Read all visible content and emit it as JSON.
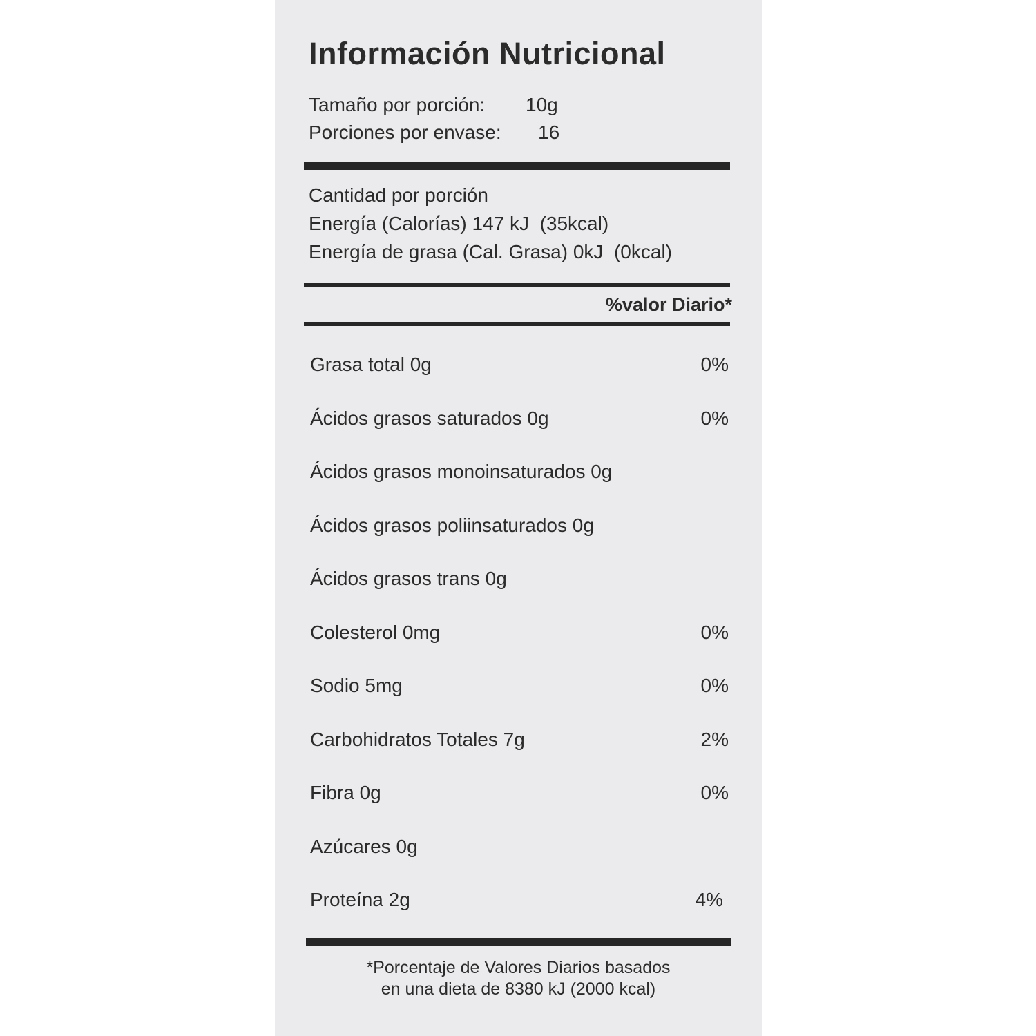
{
  "title": "Información Nutricional",
  "serving": {
    "size_label": "Tamaño por porción:",
    "size_value": "10g",
    "per_container_label": "Porciones por envase:",
    "per_container_value": "16"
  },
  "amount": {
    "heading": "Cantidad por porción",
    "energy": "Energía (Calorías) 147 kJ  (35kcal)",
    "fat_energy": "Energía de grasa (Cal. Grasa) 0kJ  (0kcal)"
  },
  "daily_value_header": "%valor Diario*",
  "nutrients": [
    {
      "label": "Grasa total 0g",
      "dv": "0%"
    },
    {
      "label": "Ácidos grasos saturados 0g",
      "dv": "0%"
    },
    {
      "label": "Ácidos grasos monoinsaturados 0g",
      "dv": ""
    },
    {
      "label": "Ácidos grasos poliinsaturados 0g",
      "dv": ""
    },
    {
      "label": "Ácidos grasos trans 0g",
      "dv": ""
    },
    {
      "label": "Colesterol 0mg",
      "dv": "0%"
    },
    {
      "label": "Sodio 5mg",
      "dv": "0%"
    },
    {
      "label": "Carbohidratos Totales 7g",
      "dv": "2%"
    },
    {
      "label": "Fibra 0g",
      "dv": "0%"
    },
    {
      "label": "Azúcares 0g",
      "dv": ""
    },
    {
      "label": "Proteína 2g",
      "dv": "4%"
    }
  ],
  "footnote": {
    "line1": "*Porcentaje de Valores Diarios basados",
    "line2": "en una dieta de 8380 kJ (2000 kcal)"
  }
}
